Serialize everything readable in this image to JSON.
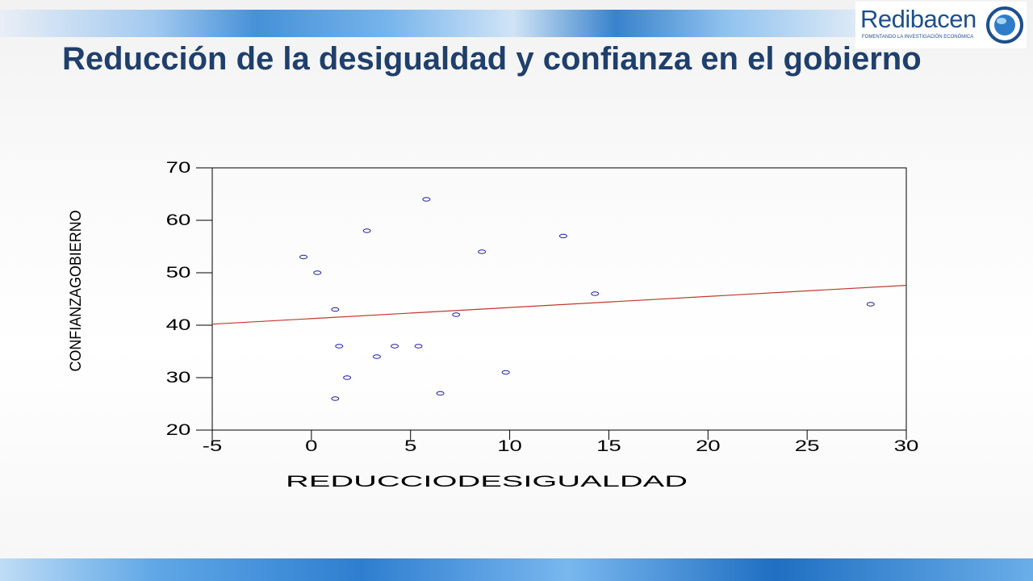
{
  "slide": {
    "title": "Reducción de la desigualdad y confianza en el gobierno"
  },
  "logo": {
    "name": "Redibacen",
    "tagline": "FOMENTANDO LA INVESTIGACIÓN ECONÓMICA"
  },
  "colors": {
    "title": "#1f3f6c",
    "points": "#1a1aa8",
    "fit_line": "#c0392b",
    "band_blue": "#2e7ed0"
  },
  "chart_data": {
    "type": "scatter",
    "xlabel": "REDUCCIODESIGUALDAD",
    "ylabel": "CONFIANZAGOBIERNO",
    "xlim": [
      -5,
      30
    ],
    "ylim": [
      20,
      70
    ],
    "xticks": [
      -5,
      0,
      5,
      10,
      15,
      20,
      25,
      30
    ],
    "yticks": [
      20,
      30,
      40,
      50,
      60,
      70
    ],
    "grid": false,
    "points": [
      {
        "x": -0.4,
        "y": 53
      },
      {
        "x": 0.3,
        "y": 50
      },
      {
        "x": 1.2,
        "y": 43
      },
      {
        "x": 1.2,
        "y": 26
      },
      {
        "x": 1.4,
        "y": 36
      },
      {
        "x": 1.8,
        "y": 30
      },
      {
        "x": 2.8,
        "y": 58
      },
      {
        "x": 3.3,
        "y": 34
      },
      {
        "x": 4.2,
        "y": 36
      },
      {
        "x": 5.4,
        "y": 36
      },
      {
        "x": 5.8,
        "y": 64
      },
      {
        "x": 6.5,
        "y": 27
      },
      {
        "x": 7.3,
        "y": 42
      },
      {
        "x": 8.6,
        "y": 54
      },
      {
        "x": 9.8,
        "y": 31
      },
      {
        "x": 12.7,
        "y": 57
      },
      {
        "x": 14.3,
        "y": 46
      },
      {
        "x": 28.2,
        "y": 44
      }
    ],
    "fit_line": {
      "x": [
        -5,
        30
      ],
      "y": [
        40.2,
        47.6
      ]
    }
  }
}
